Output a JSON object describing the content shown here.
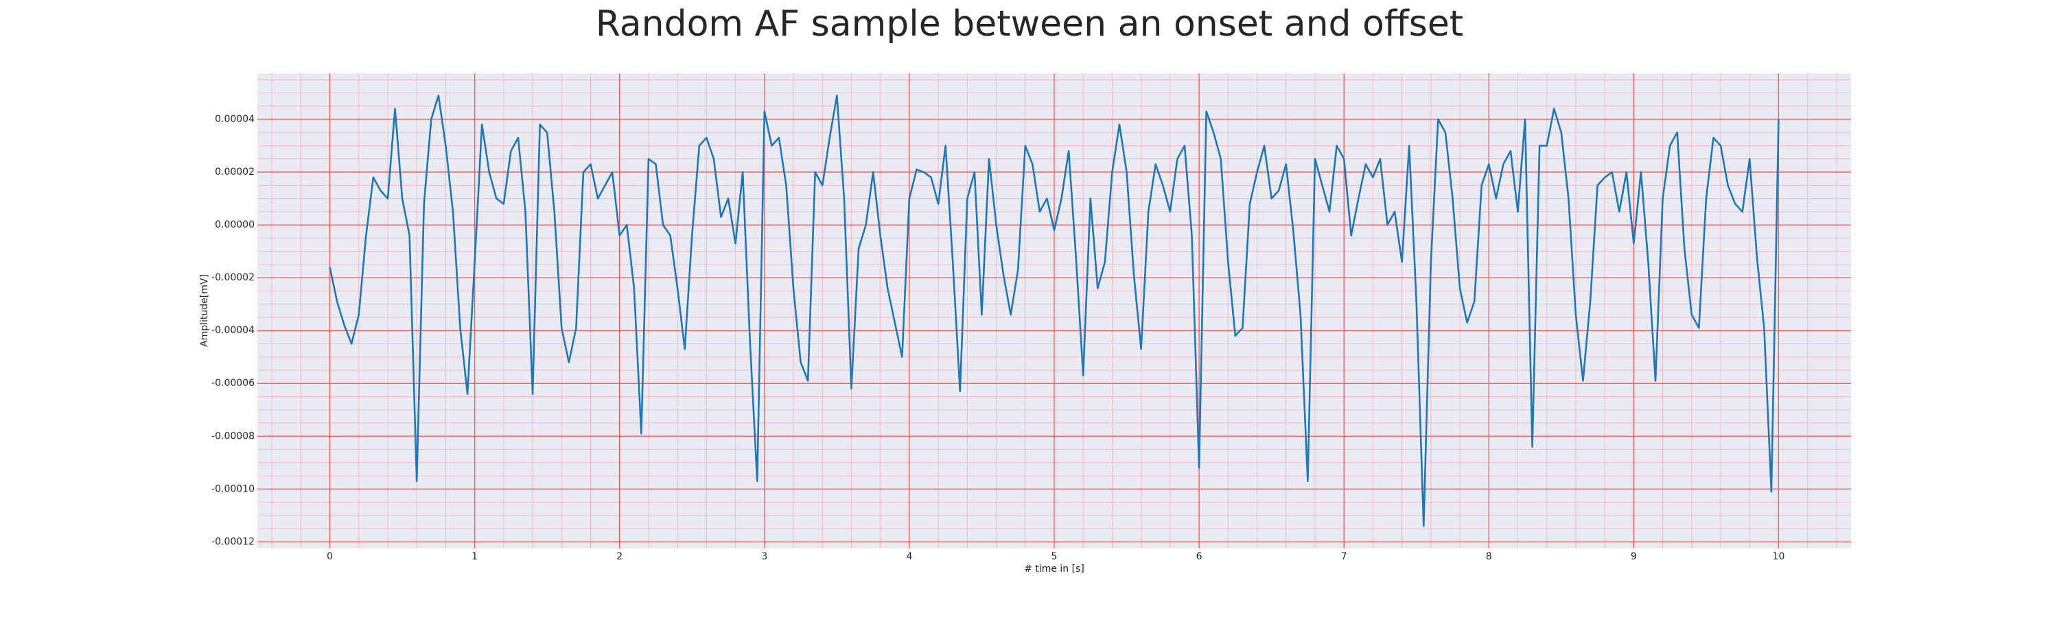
{
  "chart_data": {
    "type": "line",
    "title": "Random AF sample between an onset and offset",
    "xlabel": "# time in [s]",
    "ylabel": "Amplitude[mV]",
    "xlim": [
      -0.5,
      10.5
    ],
    "ylim": [
      -0.0001225,
      5.74e-05
    ],
    "xticks": [
      0,
      1,
      2,
      3,
      4,
      5,
      6,
      7,
      8,
      9,
      10
    ],
    "yticks": [
      {
        "value": -0.00012,
        "label": "-0.00012"
      },
      {
        "value": -0.0001,
        "label": "-0.00010"
      },
      {
        "value": -8e-05,
        "label": "-0.00008"
      },
      {
        "value": -6e-05,
        "label": "-0.00006"
      },
      {
        "value": -4e-05,
        "label": "-0.00004"
      },
      {
        "value": -2e-05,
        "label": "-0.00002"
      },
      {
        "value": 0,
        "label": "0.00000"
      },
      {
        "value": 2e-05,
        "label": "0.00002"
      },
      {
        "value": 4e-05,
        "label": "0.00004"
      }
    ],
    "grid": true,
    "grid_color": "#ff5555",
    "minor_grid_color": "#f4b8c8",
    "background": "#eaeaf2",
    "x": [
      0,
      0.05,
      0.1,
      0.15,
      0.2,
      0.25,
      0.3,
      0.35,
      0.4,
      0.45,
      0.5,
      0.55,
      0.6,
      0.65,
      0.7,
      0.75,
      0.8,
      0.85,
      0.9,
      0.95,
      1,
      1.05,
      1.1,
      1.15,
      1.2,
      1.25,
      1.3,
      1.35,
      1.4,
      1.45,
      1.5,
      1.55,
      1.6,
      1.65,
      1.7,
      1.75,
      1.8,
      1.85,
      1.9,
      1.95,
      2,
      2.05,
      2.1,
      2.15,
      2.2,
      2.25,
      2.3,
      2.35,
      2.4,
      2.45,
      2.5,
      2.55,
      2.6,
      2.65,
      2.7,
      2.75,
      2.8,
      2.85,
      2.9,
      2.95,
      3,
      3.05,
      3.1,
      3.15,
      3.2,
      3.25,
      3.3,
      3.35,
      3.4,
      3.45,
      3.5,
      3.55,
      3.6,
      3.65,
      3.7,
      3.75,
      3.8,
      3.85,
      3.9,
      3.95,
      4,
      4.05,
      4.1,
      4.15,
      4.2,
      4.25,
      4.3,
      4.35,
      4.4,
      4.45,
      4.5,
      4.55,
      4.6,
      4.65,
      4.7,
      4.75,
      4.8,
      4.85,
      4.9,
      4.95,
      5,
      5.05,
      5.1,
      5.15,
      5.2,
      5.25,
      5.3,
      5.35,
      5.4,
      5.45,
      5.5,
      5.55,
      5.6,
      5.65,
      5.7,
      5.75,
      5.8,
      5.85,
      5.9,
      5.95,
      6,
      6.05,
      6.1,
      6.15,
      6.2,
      6.25,
      6.3,
      6.35,
      6.4,
      6.45,
      6.5,
      6.55,
      6.6,
      6.65,
      6.7,
      6.75,
      6.8,
      6.85,
      6.9,
      6.95,
      7,
      7.05,
      7.1,
      7.15,
      7.2,
      7.25,
      7.3,
      7.35,
      7.4,
      7.45,
      7.5,
      7.55,
      7.6,
      7.65,
      7.7,
      7.75,
      7.8,
      7.85,
      7.9,
      7.95,
      8,
      8.05,
      8.1,
      8.15,
      8.2,
      8.25,
      8.3,
      8.35,
      8.4,
      8.45,
      8.5,
      8.55,
      8.6,
      8.65,
      8.7,
      8.75,
      8.8,
      8.85,
      8.9,
      8.95,
      9,
      9.05,
      9.1,
      9.15,
      9.2,
      9.25,
      9.3,
      9.35,
      9.4,
      9.45,
      9.5,
      9.55,
      9.6,
      9.65,
      9.7,
      9.75,
      9.8,
      9.85,
      9.9,
      9.95,
      10
    ],
    "series": [
      {
        "color": "#1f77b4",
        "values": [
          -1.6e-05,
          -2.9e-05,
          -3.8e-05,
          -4.5e-05,
          -3.4e-05,
          -4e-06,
          1.8e-05,
          1.3e-05,
          1e-05,
          4.4e-05,
          1e-05,
          -4e-06,
          -9.7e-05,
          8e-06,
          4e-05,
          4.9e-05,
          3e-05,
          5e-06,
          -3.9e-05,
          -6.4e-05,
          -1.4e-05,
          3.8e-05,
          2e-05,
          1e-05,
          8e-06,
          2.8e-05,
          3.3e-05,
          5e-06,
          -6.4e-05,
          3.8e-05,
          3.5e-05,
          5e-06,
          -3.9e-05,
          -5.2e-05,
          -3.9e-05,
          2e-05,
          2.3e-05,
          1e-05,
          1.5e-05,
          2e-05,
          -4e-06,
          0,
          -2.4e-05,
          -7.9e-05,
          2.5e-05,
          2.3e-05,
          0,
          -4e-06,
          -2.4e-05,
          -4.7e-05,
          -4e-06,
          3e-05,
          3.3e-05,
          2.5e-05,
          3e-06,
          1e-05,
          -7e-06,
          2e-05,
          -4.4e-05,
          -9.7e-05,
          4.3e-05,
          3e-05,
          3.3e-05,
          1.5e-05,
          -2.4e-05,
          -5.2e-05,
          -5.9e-05,
          2e-05,
          1.5e-05,
          3.3e-05,
          4.9e-05,
          1e-05,
          -6.2e-05,
          -9e-06,
          0,
          2e-05,
          -4e-06,
          -2.4e-05,
          -3.7e-05,
          -5e-05,
          1e-05,
          2.1e-05,
          2e-05,
          1.8e-05,
          8e-06,
          3e-05,
          -1.4e-05,
          -6.3e-05,
          1e-05,
          2e-05,
          -3.4e-05,
          2.5e-05,
          0,
          -1.9e-05,
          -3.4e-05,
          -1.7e-05,
          3e-05,
          2.3e-05,
          5e-06,
          1e-05,
          -2e-06,
          1e-05,
          2.8e-05,
          -1.2e-05,
          -5.7e-05,
          1e-05,
          -2.4e-05,
          -1.4e-05,
          2e-05,
          3.8e-05,
          2e-05,
          -1.9e-05,
          -4.7e-05,
          5e-06,
          2.3e-05,
          1.5e-05,
          5e-06,
          2.5e-05,
          3e-05,
          -4e-06,
          -9.2e-05,
          4.3e-05,
          3.5e-05,
          2.5e-05,
          -1.4e-05,
          -4.2e-05,
          -3.9e-05,
          8e-06,
          2e-05,
          3e-05,
          1e-05,
          1.3e-05,
          2.3e-05,
          -2e-06,
          -3.4e-05,
          -9.7e-05,
          2.5e-05,
          1.5e-05,
          5e-06,
          3e-05,
          2.5e-05,
          -4e-06,
          1e-05,
          2.3e-05,
          1.8e-05,
          2.5e-05,
          0,
          5e-06,
          -1.4e-05,
          3e-05,
          -2.9e-05,
          -0.000114,
          -1.4e-05,
          4e-05,
          3.5e-05,
          1e-05,
          -2.4e-05,
          -3.7e-05,
          -2.9e-05,
          1.5e-05,
          2.3e-05,
          1e-05,
          2.3e-05,
          2.8e-05,
          5e-06,
          4e-05,
          -8.4e-05,
          3e-05,
          3e-05,
          4.4e-05,
          3.5e-05,
          1e-05,
          -3.4e-05,
          -5.9e-05,
          -2.9e-05,
          1.5e-05,
          1.8e-05,
          2e-05,
          5e-06,
          2e-05,
          -7e-06,
          2e-05,
          -1.4e-05,
          -5.9e-05,
          1e-05,
          3e-05,
          3.5e-05,
          -9e-06,
          -3.4e-05,
          -3.9e-05,
          1e-05,
          3.3e-05,
          3e-05,
          1.5e-05,
          8e-06,
          5e-06,
          2.5e-05,
          -1.2e-05,
          -3.9e-05,
          -0.000101,
          4e-05
        ]
      }
    ]
  }
}
